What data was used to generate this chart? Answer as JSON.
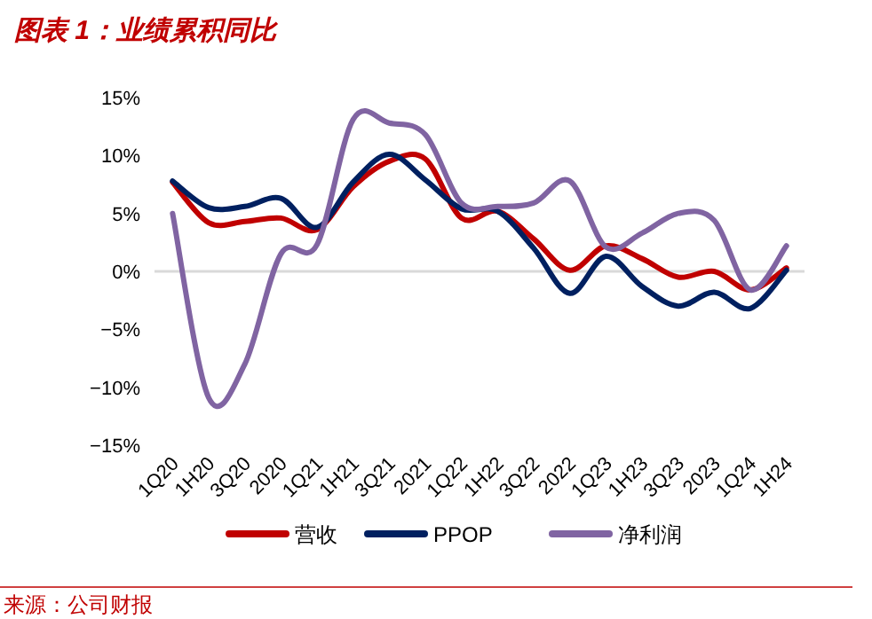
{
  "chart_data": {
    "type": "line",
    "title": "图表 1：业绩累积同比",
    "categories": [
      "1Q20",
      "1H20",
      "3Q20",
      "2020",
      "1Q21",
      "1H21",
      "3Q21",
      "2021",
      "1Q22",
      "1H22",
      "3Q22",
      "2022",
      "1Q23",
      "1H23",
      "3Q23",
      "2023",
      "1Q24",
      "1H24"
    ],
    "series": [
      {
        "name": "营收",
        "color": "#c00000",
        "values": [
          7.7,
          4.2,
          4.3,
          4.6,
          3.6,
          7.3,
          9.5,
          9.7,
          4.6,
          5.2,
          2.8,
          0.1,
          2.2,
          1.1,
          -0.5,
          0,
          -1.6,
          0.3
        ]
      },
      {
        "name": "PPOP",
        "color": "#002060",
        "values": [
          7.8,
          5.5,
          5.6,
          6.3,
          3.8,
          7.7,
          10.1,
          7.9,
          5.4,
          5.2,
          2.0,
          -1.9,
          1.3,
          -1.3,
          -3.0,
          -1.8,
          -3.2,
          0.1
        ]
      },
      {
        "name": "净利润",
        "color": "#8064a2",
        "values": [
          5.0,
          -10.9,
          -8.0,
          1.5,
          2.3,
          13.1,
          12.8,
          11.8,
          5.9,
          5.6,
          5.9,
          7.8,
          2.1,
          3.3,
          5.0,
          4.4,
          -1.6,
          2.2
        ]
      }
    ],
    "ylim": [
      -15,
      15
    ],
    "yticks": [
      {
        "value": 15,
        "label": "15%"
      },
      {
        "value": 10,
        "label": "10%"
      },
      {
        "value": 5,
        "label": "5%"
      },
      {
        "value": 0,
        "label": "0%"
      },
      {
        "value": -5,
        "label": "−5%"
      },
      {
        "value": -10,
        "label": "−10%"
      },
      {
        "value": -15,
        "label": "−15%"
      }
    ],
    "legend": "bottom",
    "annotations": [
      "来源：公司财报"
    ]
  }
}
